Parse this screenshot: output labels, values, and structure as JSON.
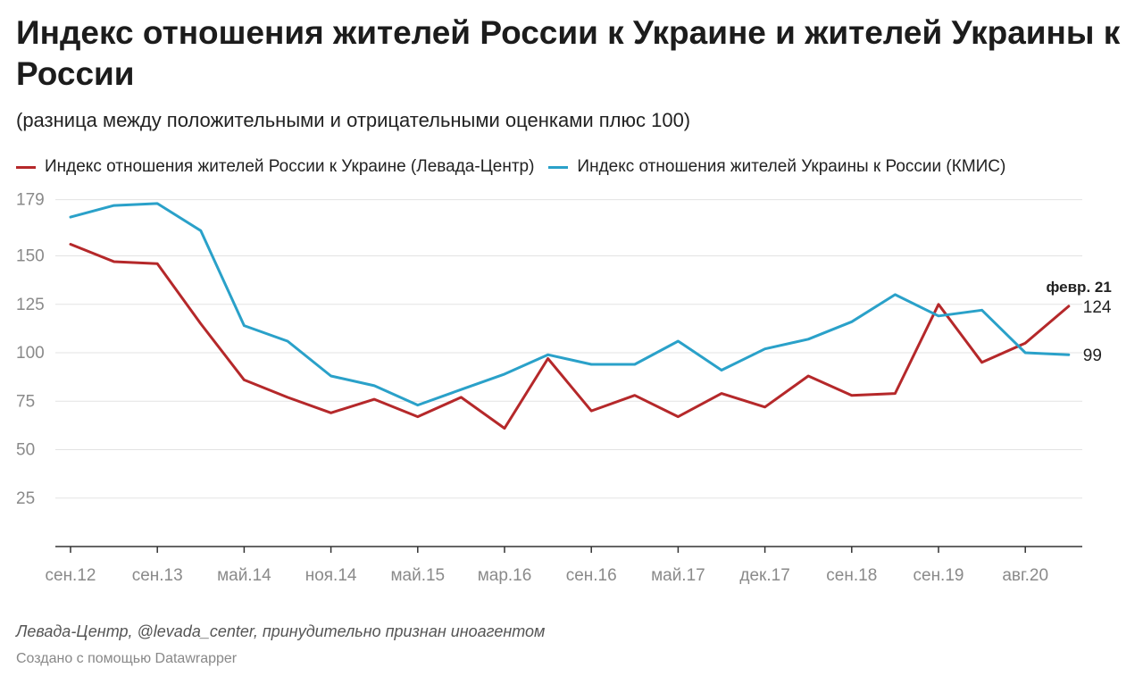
{
  "header": {
    "title": "Индекс отношения жителей России к Украине и жителей Украины к России",
    "subtitle": "(разница между положительными и отрицательными оценками плюс 100)"
  },
  "footer": {
    "source": "Левада-Центр, @levada_center, принудительно признан иноагентом",
    "credit": "Создано с помощью Datawrapper"
  },
  "chart_data": {
    "type": "line",
    "title": "Индекс отношения жителей России к Украине и жителей Украины к России",
    "subtitle": "(разница между положительными и отрицательными оценками плюс 100)",
    "ylim": [
      0,
      179
    ],
    "yticks": [
      25,
      50,
      75,
      100,
      125,
      150,
      179
    ],
    "grid": true,
    "legend_position": "top-left",
    "point_count": 24,
    "x_tick_labels": [
      {
        "label": "сен.12",
        "index": 0
      },
      {
        "label": "сен.13",
        "index": 2
      },
      {
        "label": "май.14",
        "index": 4
      },
      {
        "label": "ноя.14",
        "index": 6
      },
      {
        "label": "май.15",
        "index": 8
      },
      {
        "label": "мар.16",
        "index": 10
      },
      {
        "label": "сен.16",
        "index": 12
      },
      {
        "label": "май.17",
        "index": 14
      },
      {
        "label": "дек.17",
        "index": 16
      },
      {
        "label": "сен.18",
        "index": 18
      },
      {
        "label": "сен.19",
        "index": 20
      },
      {
        "label": "авг.20",
        "index": 22
      }
    ],
    "series": [
      {
        "name": "Индекс отношения жителей России к Украине (Левада-Центр)",
        "color": "#b5282a",
        "values": [
          156,
          147,
          146,
          115,
          86,
          77,
          69,
          76,
          67,
          77,
          61,
          97,
          70,
          78,
          67,
          79,
          72,
          88,
          78,
          79,
          125,
          95,
          105,
          124
        ],
        "end_label": "124"
      },
      {
        "name": "Индекс отношения жителей Украины к России (КМИС)",
        "color": "#2aa1c9",
        "values": [
          170,
          176,
          177,
          163,
          114,
          106,
          88,
          83,
          73,
          81,
          89,
          99,
          94,
          94,
          106,
          91,
          102,
          107,
          116,
          130,
          119,
          122,
          100,
          99
        ],
        "end_label": "99"
      }
    ],
    "annotation": "февр. 21"
  }
}
